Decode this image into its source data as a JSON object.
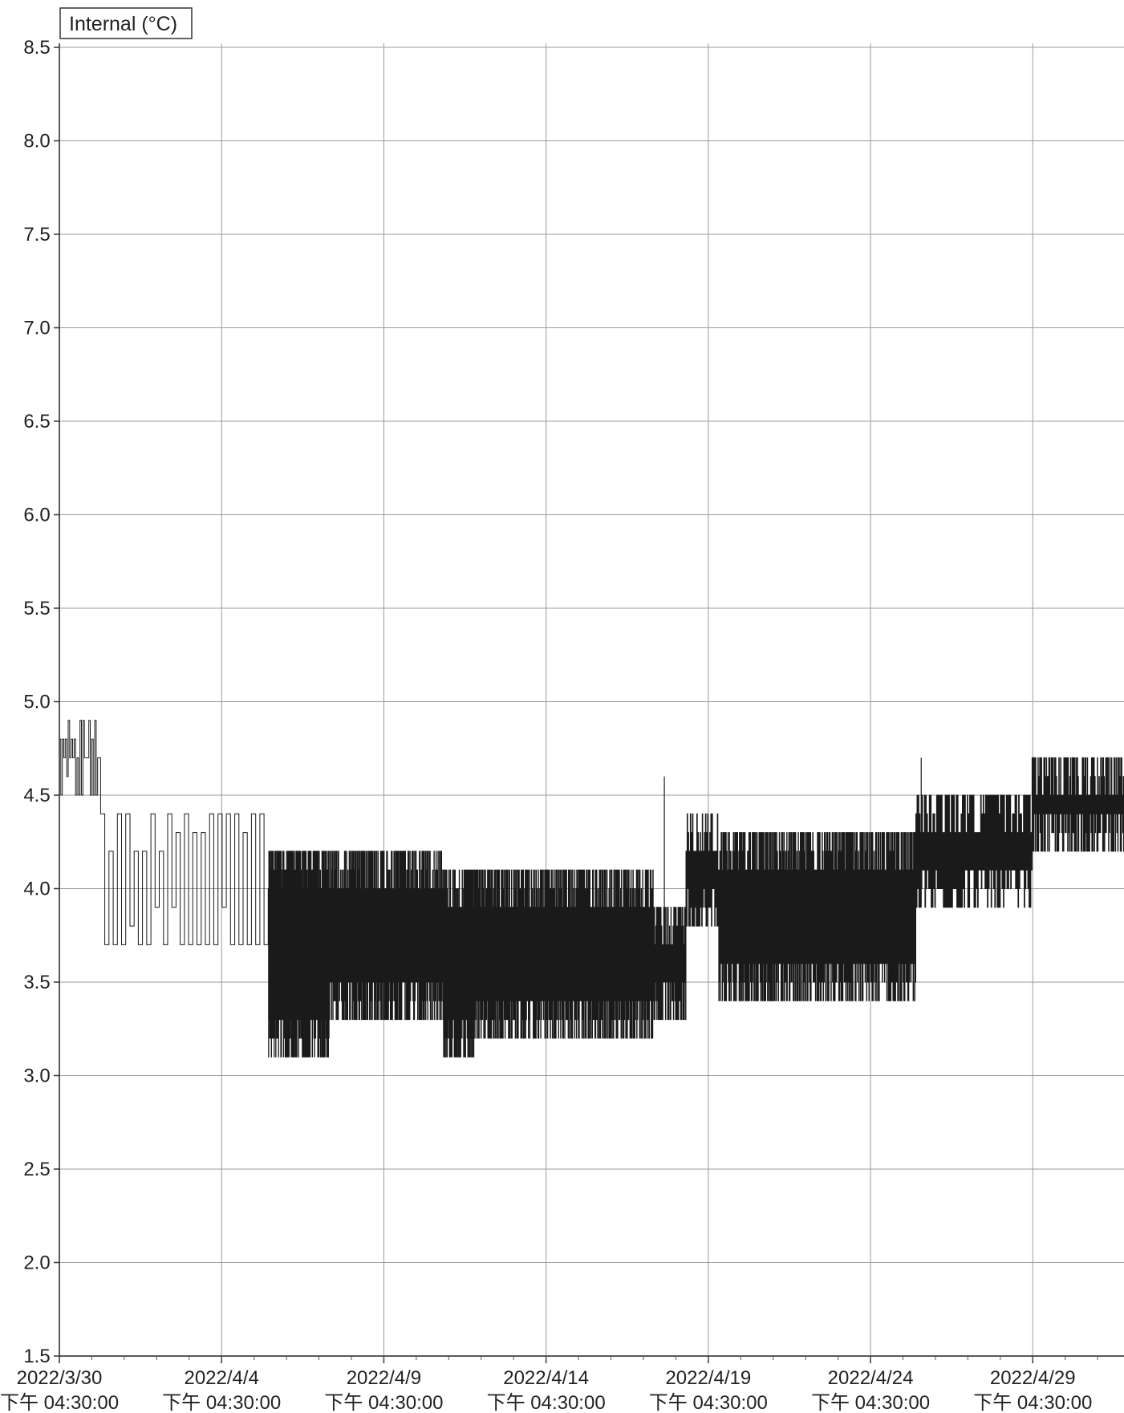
{
  "chart_data": {
    "type": "line",
    "title": "",
    "ylabel": "",
    "xlabel": "",
    "grid": true,
    "legend_position": "top-left",
    "ylim": [
      1.5,
      8.5
    ],
    "yticks": [
      "1.5",
      "2.0",
      "2.5",
      "3.0",
      "3.5",
      "4.0",
      "4.5",
      "5.0",
      "5.5",
      "6.0",
      "6.5",
      "7.0",
      "7.5",
      "8.0",
      "8.5"
    ],
    "xlim": [
      "2022/3/30 16:30",
      "2022/5/2 12:00"
    ],
    "xticks": [
      {
        "date": "2022/3/30",
        "time": "下午 04:30:00"
      },
      {
        "date": "2022/4/4",
        "time": "下午 04:30:00"
      },
      {
        "date": "2022/4/9",
        "time": "下午 04:30:00"
      },
      {
        "date": "2022/4/14",
        "time": "下午 04:30:00"
      },
      {
        "date": "2022/4/19",
        "time": "下午 04:30:00"
      },
      {
        "date": "2022/4/24",
        "time": "下午 04:30:00"
      },
      {
        "date": "2022/4/29",
        "time": "下午 04:30:00"
      }
    ],
    "series": [
      {
        "name": "Internal (°C)",
        "color": "#1a1a1a",
        "segments": [
          {
            "start": "2022/3/30 16:30",
            "end": "2022/3/31 23:00",
            "low": 4.5,
            "high": 4.9,
            "cycles": 14
          },
          {
            "start": "2022/3/31 23:00",
            "end": "2022/4/6 03:00",
            "low": 3.7,
            "high": 4.4,
            "cycles": 20
          },
          {
            "start": "2022/4/6 03:00",
            "end": "2022/4/8 00:00",
            "low": 3.1,
            "high": 4.2,
            "cycles": 110
          },
          {
            "start": "2022/4/8 00:00",
            "end": "2022/4/11 12:00",
            "low": 3.3,
            "high": 4.2,
            "cycles": 170
          },
          {
            "start": "2022/4/11 12:00",
            "end": "2022/4/12 12:00",
            "low": 3.1,
            "high": 4.1,
            "cycles": 55
          },
          {
            "start": "2022/4/12 12:00",
            "end": "2022/4/18 00:00",
            "low": 3.2,
            "high": 4.1,
            "cycles": 260
          },
          {
            "start": "2022/4/18 00:00",
            "end": "2022/4/19 00:00",
            "low": 3.3,
            "high": 3.9,
            "cycles": 45
          },
          {
            "start": "2022/4/19 00:00",
            "end": "2022/4/20 00:00",
            "low": 3.8,
            "high": 4.4,
            "cycles": 30
          },
          {
            "start": "2022/4/20 00:00",
            "end": "2022/4/22 12:00",
            "low": 3.4,
            "high": 4.3,
            "cycles": 120
          },
          {
            "start": "2022/4/22 12:00",
            "end": "2022/4/26 02:00",
            "low": 3.4,
            "high": 4.3,
            "cycles": 150
          },
          {
            "start": "2022/4/26 02:00",
            "end": "2022/4/29 16:00",
            "low": 3.9,
            "high": 4.5,
            "cycles": 95
          },
          {
            "start": "2022/4/29 16:00",
            "end": "2022/5/2 12:00",
            "low": 4.2,
            "high": 4.7,
            "cycles": 110
          }
        ],
        "spikes": [
          {
            "x": "2022/4/18 08:00",
            "y": 4.6
          },
          {
            "x": "2022/4/26 06:00",
            "y": 4.7
          }
        ]
      }
    ]
  }
}
